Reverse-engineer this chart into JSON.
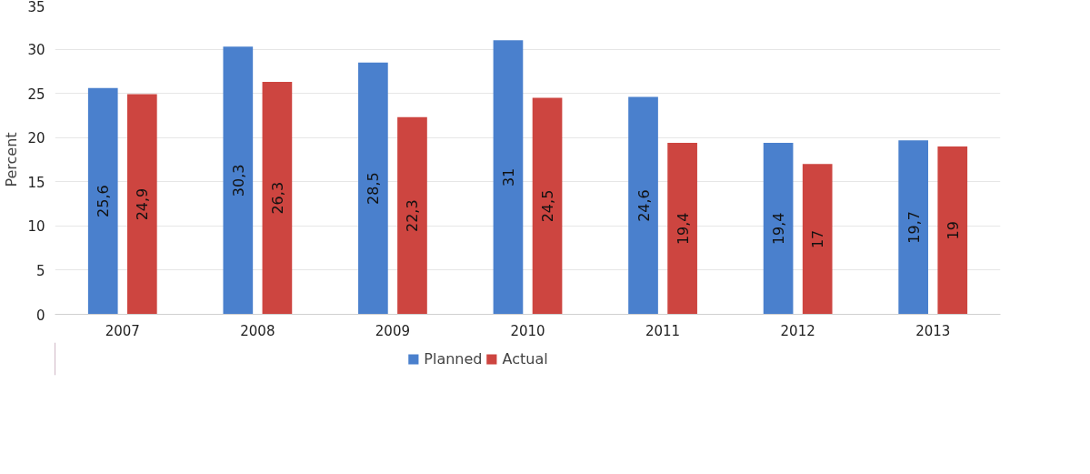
{
  "chart_data": {
    "type": "bar",
    "ylabel": "Percent",
    "categories": [
      "2007",
      "2008",
      "2009",
      "2010",
      "2011",
      "2012",
      "2013"
    ],
    "series": [
      {
        "name": "Planned",
        "color": "#4a80cd",
        "values": [
          25.6,
          30.3,
          28.5,
          31,
          24.6,
          19.4,
          19.7
        ],
        "value_labels": [
          "25,6",
          "30,3",
          "28,5",
          "31",
          "24,6",
          "19,4",
          "19,7"
        ]
      },
      {
        "name": "Actual",
        "color": "#cd4540",
        "values": [
          24.9,
          26.3,
          22.3,
          24.5,
          19.4,
          17,
          19
        ],
        "value_labels": [
          "24,9",
          "26,3",
          "22,3",
          "24,5",
          "19,4",
          "17",
          "19"
        ]
      }
    ],
    "ylim": [
      0,
      35
    ],
    "yticks": [
      0,
      5,
      10,
      15,
      20,
      25,
      30,
      35
    ],
    "grid": "y",
    "legend": "bottom"
  }
}
